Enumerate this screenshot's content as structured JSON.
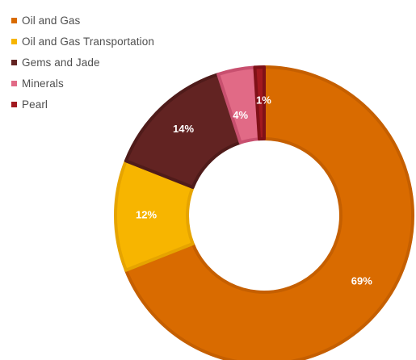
{
  "chart_data": {
    "type": "pie",
    "categories": [
      "Oil and Gas",
      "Oil and Gas Transportation",
      "Gems and Jade",
      "Minerals",
      "Pearl"
    ],
    "values": [
      69,
      12,
      14,
      4,
      1
    ],
    "data_labels": [
      "69%",
      "12%",
      "14%",
      "4%",
      "1%"
    ],
    "colors": [
      "#d96b00",
      "#f7b500",
      "#622322",
      "#e16a86",
      "#a1191f"
    ],
    "border_colors": [
      "#c55f00",
      "#e6a400",
      "#4f1b1a",
      "#c8506f",
      "#7f1117"
    ],
    "legend": "top-left",
    "donut": true
  }
}
